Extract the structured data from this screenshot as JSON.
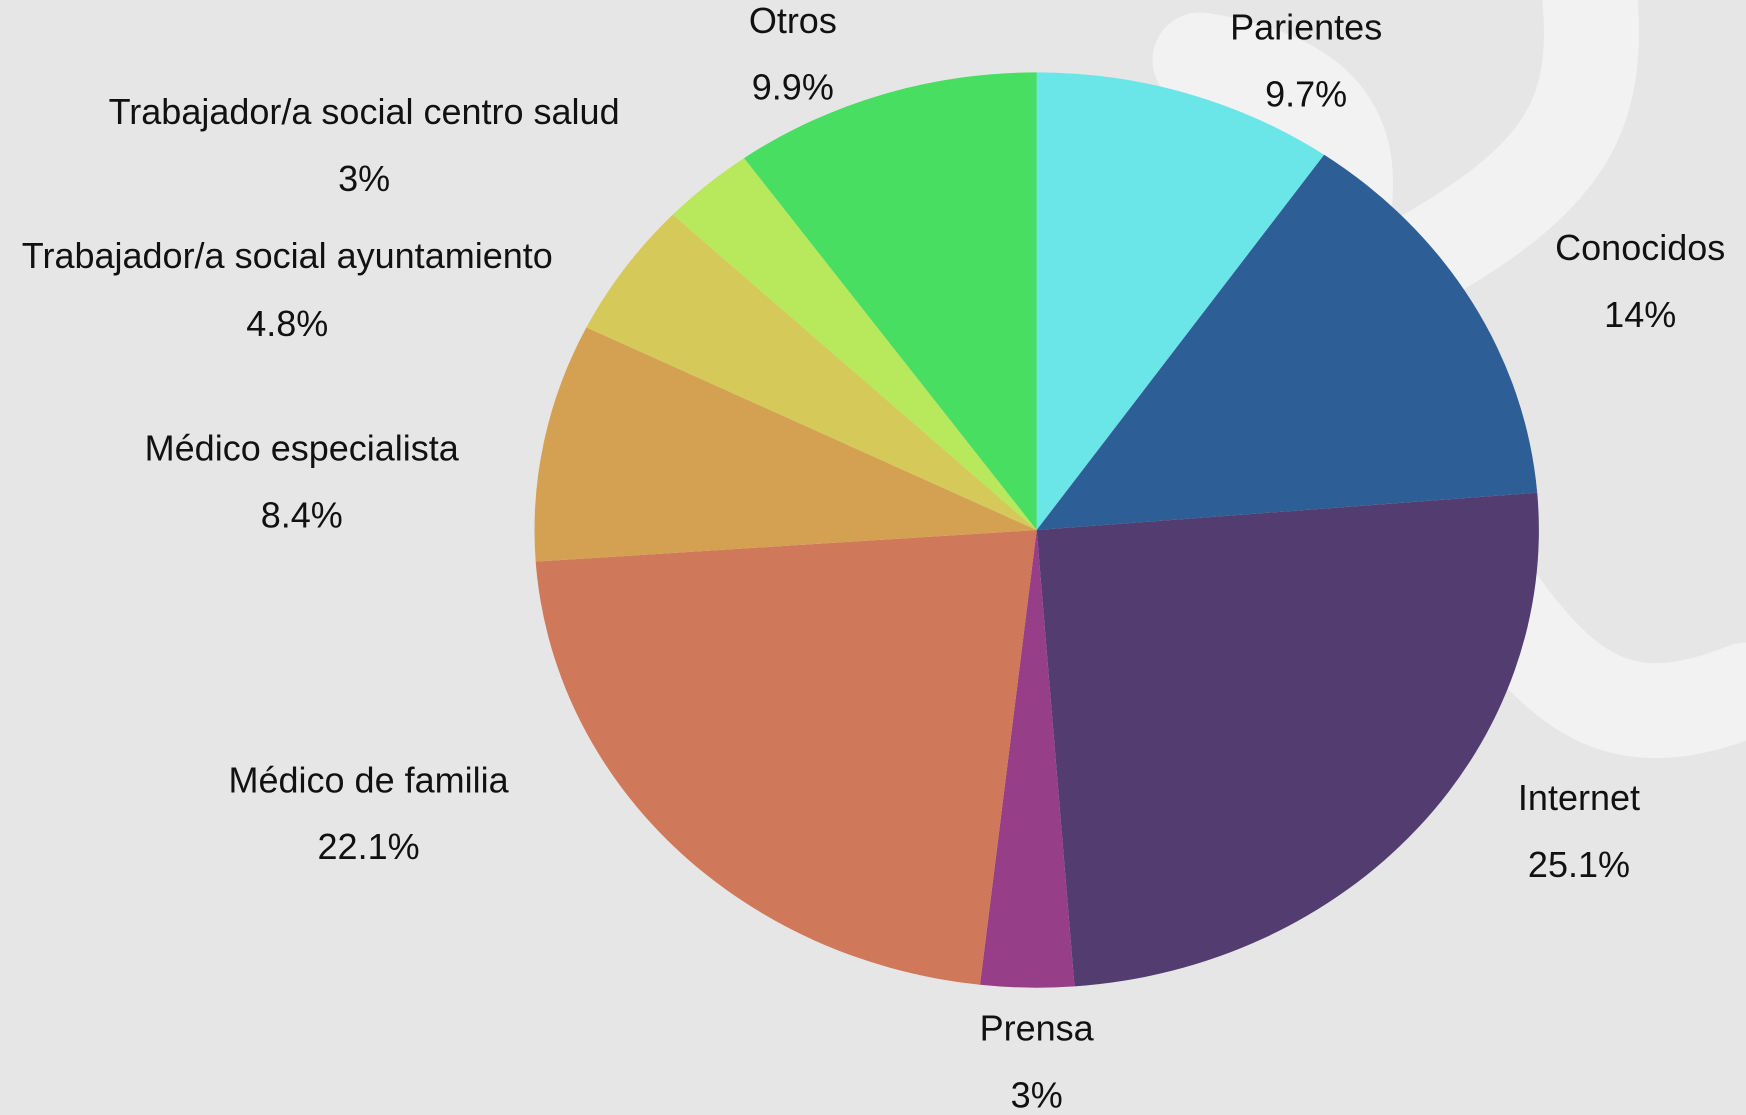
{
  "chart_data": {
    "type": "pie",
    "categories": [
      "Parientes",
      "Conocidos",
      "Internet",
      "Prensa",
      "Médico de familia",
      "Médico especialista",
      "Trabajador/a social ayuntamiento",
      "Trabajador/a social centro salud",
      "Otros"
    ],
    "values": [
      9.7,
      14,
      25.1,
      3,
      22.1,
      8.4,
      4.8,
      3,
      9.9
    ],
    "value_labels": [
      "9.7%",
      "14%",
      "25.1%",
      "3%",
      "22.1%",
      "8.4%",
      "4.8%",
      "3%",
      "9.9%"
    ],
    "colors": [
      "#6ae6e8",
      "#2e5e96",
      "#523c70",
      "#963e87",
      "#cf785a",
      "#d4a152",
      "#d5c95a",
      "#b8e85c",
      "#48de62"
    ]
  }
}
